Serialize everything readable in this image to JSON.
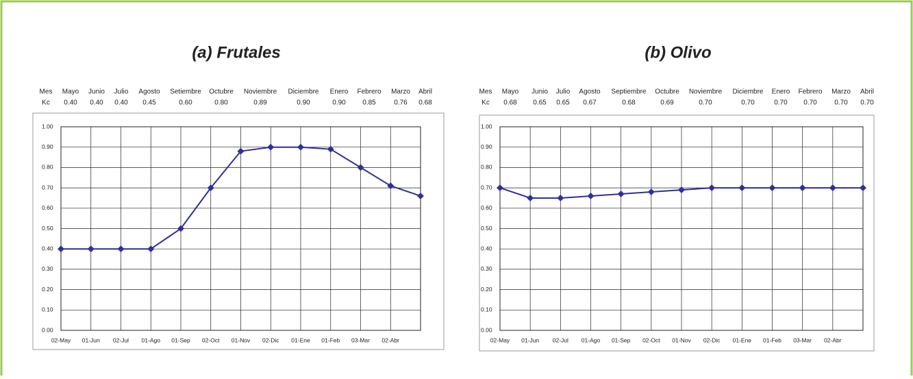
{
  "chart_data": [
    {
      "type": "line",
      "title": "(a) Frutales",
      "table": [
        [
          "Mes",
          "Mayo",
          "Junio",
          "Julio",
          "Agosto",
          "Setiembre",
          "Octubre",
          "Noviembre",
          "Diciembre",
          "Enero",
          "Febrero",
          "Marzo",
          "Abril"
        ],
        [
          "Kc",
          "0.40",
          "0.40",
          "0.40",
          "0.45",
          "0.60",
          "0.80",
          "0.89",
          "0.90",
          "0.90",
          "0.85",
          "0.76",
          "0.68"
        ]
      ],
      "categories": [
        "02-May",
        "01-Jun",
        "02-Jul",
        "01-Ago",
        "01-Sep",
        "02-Oct",
        "01-Nov",
        "02-Dic",
        "01-Ene",
        "01-Feb",
        "03-Mar",
        "02-Abr",
        null
      ],
      "values": [
        0.4,
        0.4,
        0.4,
        0.4,
        0.5,
        0.7,
        0.88,
        0.9,
        0.9,
        0.89,
        0.8,
        0.71,
        0.66
      ],
      "color": "#2e2e9c",
      "ylim": [
        0,
        1
      ],
      "yticks": [
        {
          "value": 0,
          "label": "0.00"
        },
        {
          "value": 0.1,
          "label": "0.10"
        },
        {
          "value": 0.2,
          "label": "0.20"
        },
        {
          "value": 0.3,
          "label": "0.30"
        },
        {
          "value": 0.4,
          "label": "0.40"
        },
        {
          "value": 0.5,
          "label": "0.50"
        },
        {
          "value": 0.6,
          "label": "0.60"
        },
        {
          "value": 0.7,
          "label": "0.70"
        },
        {
          "value": 0.8,
          "label": "0.80"
        },
        {
          "value": 0.9,
          "label": "0.90"
        },
        {
          "value": 1,
          "label": "1.00"
        }
      ],
      "grid": true
    },
    {
      "type": "line",
      "title": "(b) Olivo",
      "table": [
        [
          "Mes",
          "Mayo",
          "Junio",
          "Julio",
          "Agosto",
          "Septiembre",
          "Octubre",
          "Noviembre",
          "Diciembre",
          "Enero",
          "Febrero",
          "Marzo",
          "Abril"
        ],
        [
          "Kc",
          "0.68",
          "0.65",
          "0.65",
          "0.67",
          "0.68",
          "0.69",
          "0.70",
          "0.70",
          "0.70",
          "0.70",
          "0.70",
          "0.70"
        ]
      ],
      "categories": [
        "02-May",
        "01-Jun",
        "02-Jul",
        "01-Ago",
        "01-Sep",
        "02-Oct",
        "01-Nov",
        "02-Dic",
        "01-Ene",
        "01-Feb",
        "03-Mar",
        "02-Abr",
        null
      ],
      "values": [
        0.7,
        0.65,
        0.65,
        0.66,
        0.67,
        0.68,
        0.69,
        0.7,
        0.7,
        0.7,
        0.7,
        0.7,
        0.7
      ],
      "color": "#2e2e9c",
      "ylim": [
        0,
        1
      ],
      "yticks": [
        {
          "value": 0,
          "label": "0.00"
        },
        {
          "value": 0.1,
          "label": "0.10"
        },
        {
          "value": 0.2,
          "label": "0.20"
        },
        {
          "value": 0.3,
          "label": "0.30"
        },
        {
          "value": 0.4,
          "label": "0.40"
        },
        {
          "value": 0.5,
          "label": "0.50"
        },
        {
          "value": 0.6,
          "label": "0.60"
        },
        {
          "value": 0.7,
          "label": "0.70"
        },
        {
          "value": 0.8,
          "label": "0.80"
        },
        {
          "value": 0.9,
          "label": "0.90"
        },
        {
          "value": 1,
          "label": "1.00"
        }
      ],
      "grid": true
    }
  ]
}
